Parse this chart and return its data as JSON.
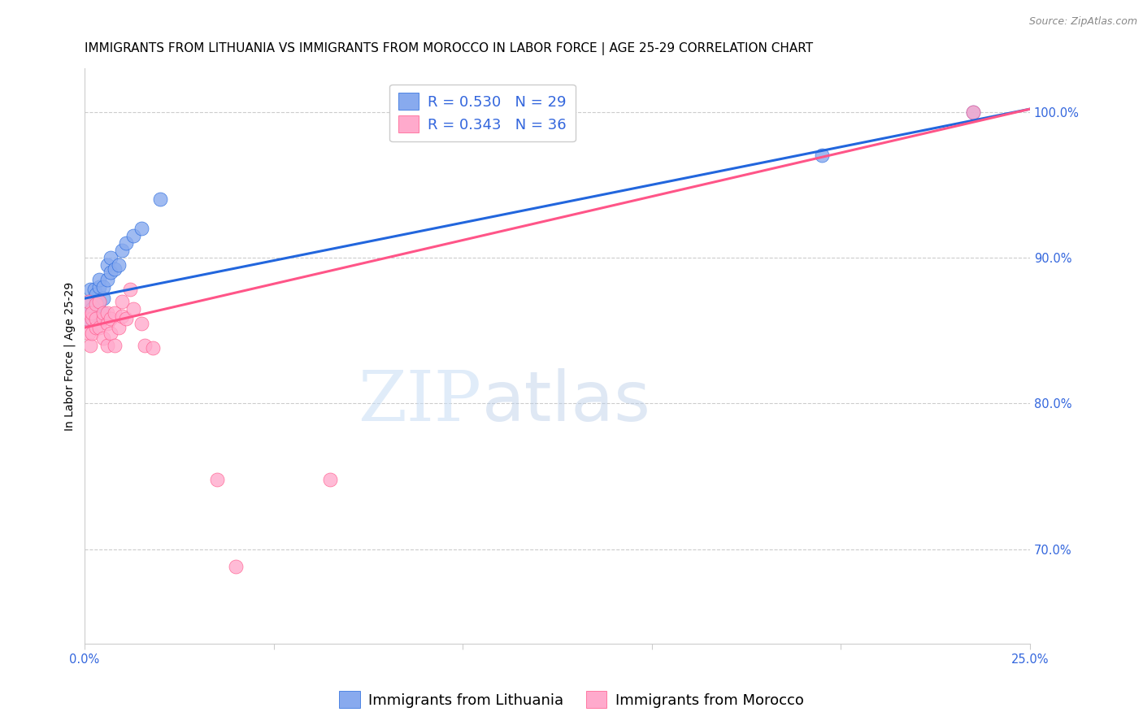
{
  "title": "IMMIGRANTS FROM LITHUANIA VS IMMIGRANTS FROM MOROCCO IN LABOR FORCE | AGE 25-29 CORRELATION CHART",
  "source": "Source: ZipAtlas.com",
  "ylabel": "In Labor Force | Age 25-29",
  "xlim": [
    0.0,
    0.25
  ],
  "ylim": [
    0.635,
    1.03
  ],
  "xticks": [
    0.0,
    0.05,
    0.1,
    0.15,
    0.2,
    0.25
  ],
  "xticklabels": [
    "0.0%",
    "",
    "",
    "",
    "",
    "25.0%"
  ],
  "yticks_right": [
    0.7,
    0.8,
    0.9,
    1.0
  ],
  "ytick_labels_right": [
    "70.0%",
    "80.0%",
    "90.0%",
    "100.0%"
  ],
  "lithuania_x": [
    0.0005,
    0.001,
    0.001,
    0.0015,
    0.002,
    0.002,
    0.0025,
    0.003,
    0.003,
    0.003,
    0.004,
    0.004,
    0.004,
    0.005,
    0.005,
    0.005,
    0.006,
    0.006,
    0.007,
    0.007,
    0.008,
    0.009,
    0.01,
    0.011,
    0.013,
    0.015,
    0.02,
    0.195,
    0.235
  ],
  "lithuania_y": [
    0.858,
    0.862,
    0.87,
    0.878,
    0.858,
    0.865,
    0.878,
    0.875,
    0.858,
    0.87,
    0.88,
    0.87,
    0.885,
    0.872,
    0.862,
    0.88,
    0.885,
    0.895,
    0.89,
    0.9,
    0.892,
    0.895,
    0.905,
    0.91,
    0.915,
    0.92,
    0.94,
    0.97,
    1.0
  ],
  "morocco_x": [
    0.0005,
    0.001,
    0.001,
    0.001,
    0.0015,
    0.002,
    0.002,
    0.002,
    0.003,
    0.003,
    0.003,
    0.004,
    0.004,
    0.005,
    0.005,
    0.005,
    0.006,
    0.006,
    0.006,
    0.007,
    0.007,
    0.008,
    0.008,
    0.009,
    0.01,
    0.01,
    0.011,
    0.012,
    0.013,
    0.015,
    0.016,
    0.018,
    0.035,
    0.04,
    0.065,
    0.235
  ],
  "morocco_y": [
    0.858,
    0.848,
    0.862,
    0.87,
    0.84,
    0.858,
    0.862,
    0.848,
    0.852,
    0.868,
    0.858,
    0.852,
    0.87,
    0.845,
    0.858,
    0.862,
    0.855,
    0.862,
    0.84,
    0.848,
    0.858,
    0.862,
    0.84,
    0.852,
    0.86,
    0.87,
    0.858,
    0.878,
    0.865,
    0.855,
    0.84,
    0.838,
    0.748,
    0.688,
    0.748,
    1.0
  ],
  "lithuania_color": "#88aaee",
  "morocco_color": "#ffaacc",
  "lithuania_line_color": "#2266dd",
  "morocco_line_color": "#ff5588",
  "lith_line_x0": 0.0,
  "lith_line_y0": 0.872,
  "lith_line_x1": 0.25,
  "lith_line_y1": 1.002,
  "mor_line_x0": 0.0,
  "mor_line_y0": 0.852,
  "mor_line_x1": 0.25,
  "mor_line_y1": 1.002,
  "R_lithuania": 0.53,
  "N_lithuania": 29,
  "R_morocco": 0.343,
  "N_morocco": 36,
  "watermark_zip": "ZIP",
  "watermark_atlas": "atlas",
  "title_fontsize": 11,
  "axis_label_fontsize": 10,
  "tick_fontsize": 10.5,
  "source_fontsize": 9
}
